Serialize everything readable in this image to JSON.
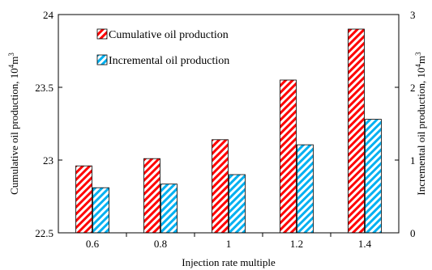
{
  "chart_data": {
    "type": "bar",
    "x_label": "Injection rate multiple",
    "categories": [
      "0.6",
      "0.8",
      "1",
      "1.2",
      "1.4"
    ],
    "y_left": {
      "label_main": "Cumulative oil production, 10",
      "label_exp1": "4",
      "label_unit": "m",
      "label_exp2": "3",
      "range": [
        22.5,
        24
      ],
      "ticks": [
        "22.5",
        "23",
        "23.5",
        "24"
      ]
    },
    "y_right": {
      "label_main": "Incremental oil production, 10",
      "label_exp1": "4",
      "label_unit": "m",
      "label_exp2": "3",
      "range": [
        0,
        3
      ],
      "ticks": [
        "0",
        "1",
        "2",
        "3"
      ]
    },
    "series": [
      {
        "name": "Cumulative oil production",
        "axis": "left",
        "pattern": "red-diagonal-hatch",
        "color": "#ff0000",
        "values": [
          22.96,
          23.01,
          23.14,
          23.55,
          23.9
        ]
      },
      {
        "name": "Incremental oil production",
        "axis": "right",
        "pattern": "blue-diagonal-hatch",
        "color": "#00b0f0",
        "values": [
          0.62,
          0.67,
          0.8,
          1.21,
          1.56
        ]
      }
    ],
    "legend_position": "top-left",
    "grid": false
  }
}
